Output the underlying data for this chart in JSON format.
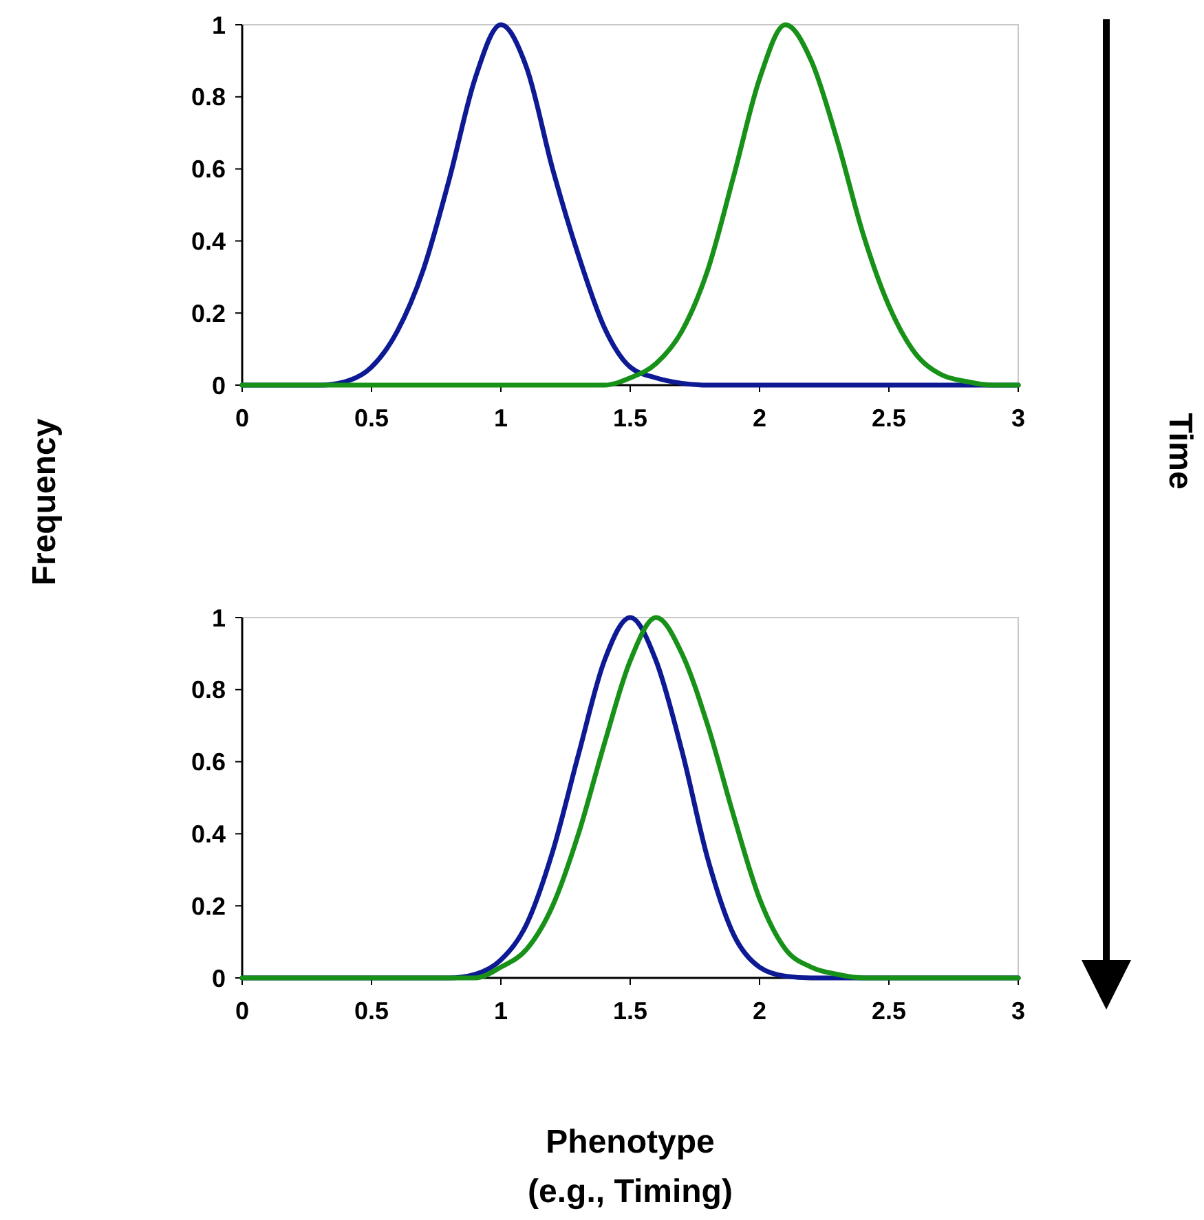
{
  "chart_data": [
    {
      "type": "line",
      "ylabel": "Frequency",
      "xlim": [
        0,
        3
      ],
      "ylim": [
        0,
        1
      ],
      "xticks": [
        0,
        0.5,
        1,
        1.5,
        2,
        2.5,
        3
      ],
      "yticks": [
        0,
        0.2,
        0.4,
        0.6,
        0.8,
        1
      ],
      "grid": false,
      "annotations": [
        "Time"
      ],
      "series": [
        {
          "color": "#0d1a94",
          "x": [
            0,
            0.3,
            0.4,
            0.5,
            0.6,
            0.7,
            0.8,
            0.9,
            1.0,
            1.1,
            1.2,
            1.3,
            1.4,
            1.5,
            1.6,
            1.7,
            1.8,
            3
          ],
          "values": [
            0,
            0,
            0.01,
            0.05,
            0.15,
            0.32,
            0.57,
            0.85,
            1,
            0.88,
            0.6,
            0.36,
            0.16,
            0.05,
            0.02,
            0.005,
            0,
            0
          ]
        },
        {
          "color": "#179117",
          "x": [
            0,
            1.4,
            1.5,
            1.6,
            1.7,
            1.8,
            1.9,
            2.0,
            2.1,
            2.2,
            2.3,
            2.4,
            2.5,
            2.6,
            2.7,
            2.8,
            2.9,
            3
          ],
          "values": [
            0,
            0,
            0.02,
            0.06,
            0.15,
            0.32,
            0.58,
            0.85,
            1,
            0.9,
            0.68,
            0.42,
            0.22,
            0.09,
            0.03,
            0.01,
            0,
            0
          ]
        }
      ]
    },
    {
      "type": "line",
      "xlabel": "Phenotype\n(e.g., Timing)",
      "xlim": [
        0,
        3
      ],
      "ylim": [
        0,
        1
      ],
      "xticks": [
        0,
        0.5,
        1,
        1.5,
        2,
        2.5,
        3
      ],
      "yticks": [
        0,
        0.2,
        0.4,
        0.6,
        0.8,
        1
      ],
      "grid": false,
      "series": [
        {
          "color": "#0d1a94",
          "x": [
            0,
            0.8,
            0.9,
            1.0,
            1.1,
            1.2,
            1.3,
            1.4,
            1.5,
            1.6,
            1.7,
            1.8,
            1.9,
            2.0,
            2.1,
            2.2,
            3
          ],
          "values": [
            0,
            0,
            0.01,
            0.05,
            0.15,
            0.35,
            0.62,
            0.88,
            1,
            0.88,
            0.63,
            0.33,
            0.12,
            0.03,
            0.005,
            0,
            0
          ]
        },
        {
          "color": "#179117",
          "x": [
            0,
            0.9,
            1.0,
            1.1,
            1.2,
            1.3,
            1.4,
            1.5,
            1.6,
            1.7,
            1.8,
            1.9,
            2.0,
            2.1,
            2.2,
            2.3,
            2.4,
            3
          ],
          "values": [
            0,
            0,
            0.03,
            0.08,
            0.2,
            0.4,
            0.65,
            0.88,
            1,
            0.9,
            0.7,
            0.45,
            0.22,
            0.08,
            0.03,
            0.01,
            0,
            0
          ]
        }
      ]
    }
  ]
}
